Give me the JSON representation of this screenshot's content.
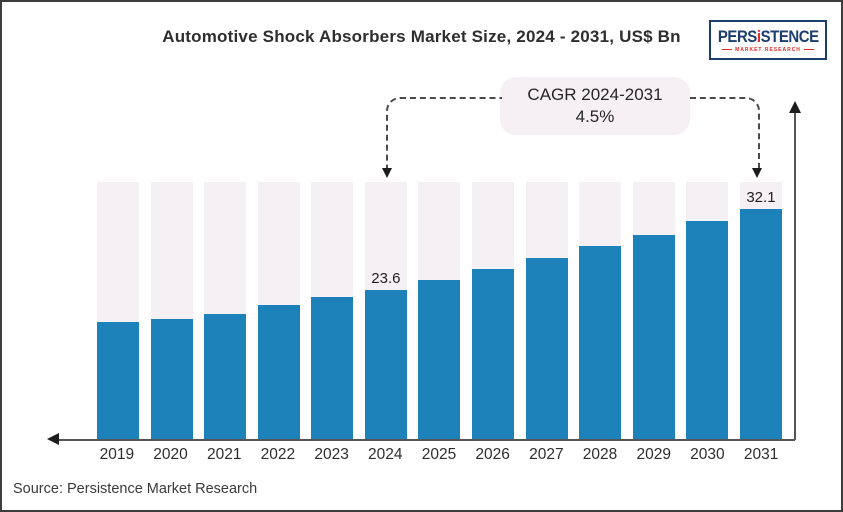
{
  "header": {
    "title": "Automotive Shock Absorbers Market Size, 2024 - 2031, US$ Bn",
    "logo": {
      "brand_pre": "PERS",
      "brand_i": "i",
      "brand_post": "STENCE",
      "tagline": "MARKET RESEARCH"
    }
  },
  "annotation": {
    "line1": "CAGR 2024-2031",
    "line2": "4.5%"
  },
  "footer": {
    "source": "Source: Persistence Market Research"
  },
  "colors": {
    "bar": "#1e82ba",
    "track": "#f5f0f3",
    "pill-bg": "#f6eff4",
    "axis": "#555555",
    "arrow": "#1d1d1d",
    "text": "#2e2e2e",
    "logo-navy": "#1c3e6e",
    "logo-red": "#e02b27"
  },
  "chart_data": {
    "type": "bar",
    "title": "Automotive Shock Absorbers Market Size, 2024 - 2031, US$ Bn",
    "xlabel": "",
    "ylabel": "",
    "unit": "US$ Bn",
    "categories": [
      "2019",
      "2020",
      "2021",
      "2022",
      "2023",
      "2024",
      "2025",
      "2026",
      "2027",
      "2028",
      "2029",
      "2030",
      "2031"
    ],
    "values": [
      20.3,
      20.6,
      21.2,
      22.1,
      22.9,
      23.6,
      24.7,
      25.8,
      27.0,
      28.2,
      29.4,
      30.8,
      32.1
    ],
    "data_labels": {
      "2024": "23.6",
      "2031": "32.1"
    },
    "cagr_label": "CAGR 2024-2031",
    "cagr_value": "4.5%",
    "ylim": [
      8.2,
      34.85
    ],
    "grid": false,
    "legend": false,
    "bar_color": "#1e82ba",
    "track_color": "#f5f0f3"
  }
}
